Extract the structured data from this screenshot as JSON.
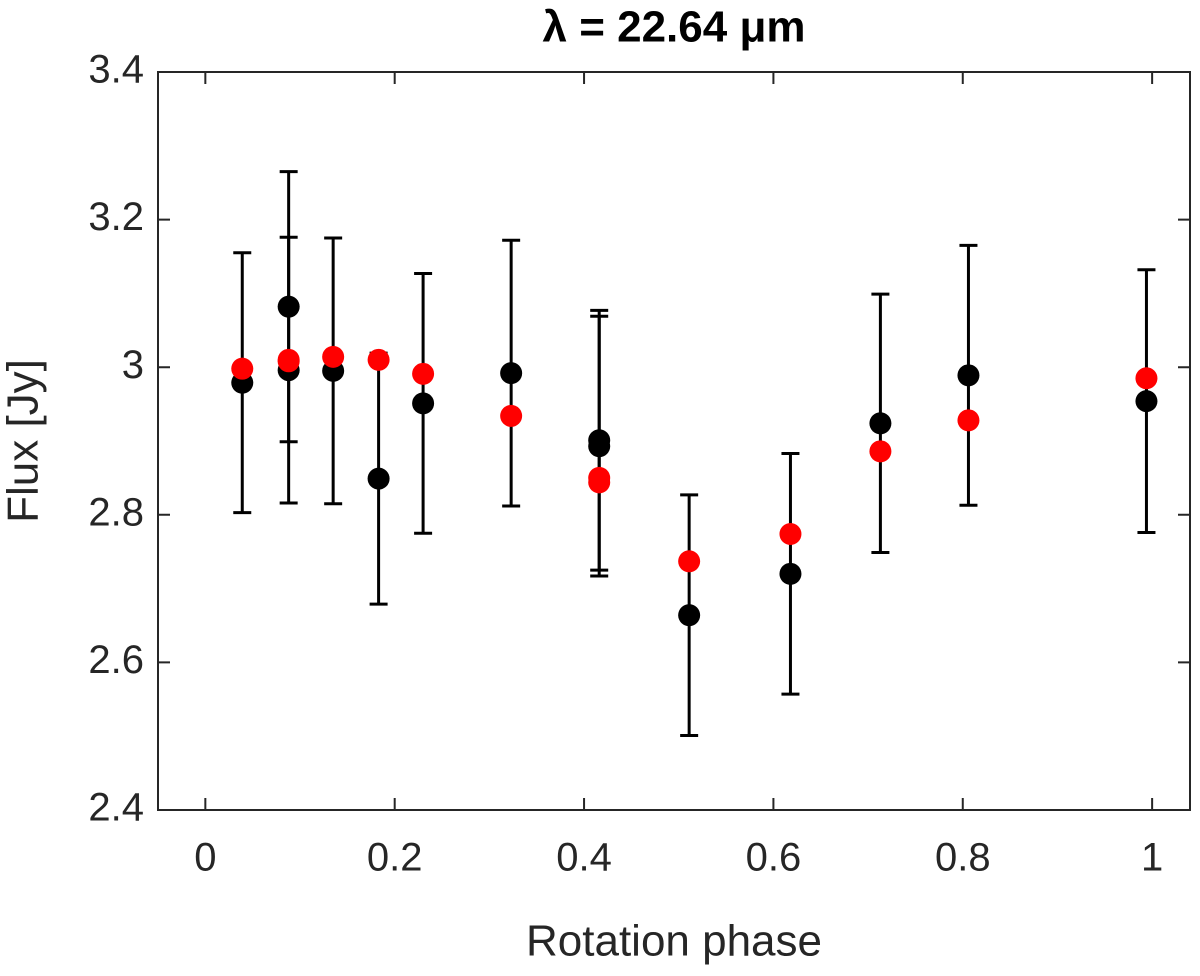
{
  "chart_data": {
    "type": "scatter",
    "title": "λ = 22.64 μm",
    "xlabel": "Rotation phase",
    "ylabel": "Flux [Jy]",
    "x": [
      0.039,
      0.088,
      0.088,
      0.135,
      0.183,
      0.23,
      0.323,
      0.416,
      0.416,
      0.511,
      0.618,
      0.713,
      0.806,
      0.994
    ],
    "series": [
      {
        "color": "#000000",
        "values": [
          2.979,
          3.082,
          2.996,
          2.995,
          2.849,
          2.951,
          2.992,
          2.901,
          2.893,
          2.664,
          2.72,
          2.924,
          2.989,
          2.954
        ],
        "errors": [
          0.176,
          0.183,
          0.18,
          0.18,
          0.17,
          0.176,
          0.18,
          0.176,
          0.176,
          0.163,
          0.163,
          0.175,
          0.176,
          0.178
        ]
      },
      {
        "color": "#ff0000",
        "values": [
          2.998,
          3.01,
          3.008,
          3.014,
          3.01,
          2.991,
          2.934,
          2.85,
          2.844,
          2.737,
          2.774,
          2.886,
          2.928,
          2.985
        ]
      }
    ],
    "xlim": [
      -0.05,
      1.04
    ],
    "xticks": [
      0,
      0.2,
      0.4,
      0.6,
      0.8,
      1
    ],
    "ylim": [
      2.4,
      3.4
    ],
    "yticks": [
      2.4,
      2.6,
      2.8,
      3,
      3.2,
      3.4
    ]
  }
}
